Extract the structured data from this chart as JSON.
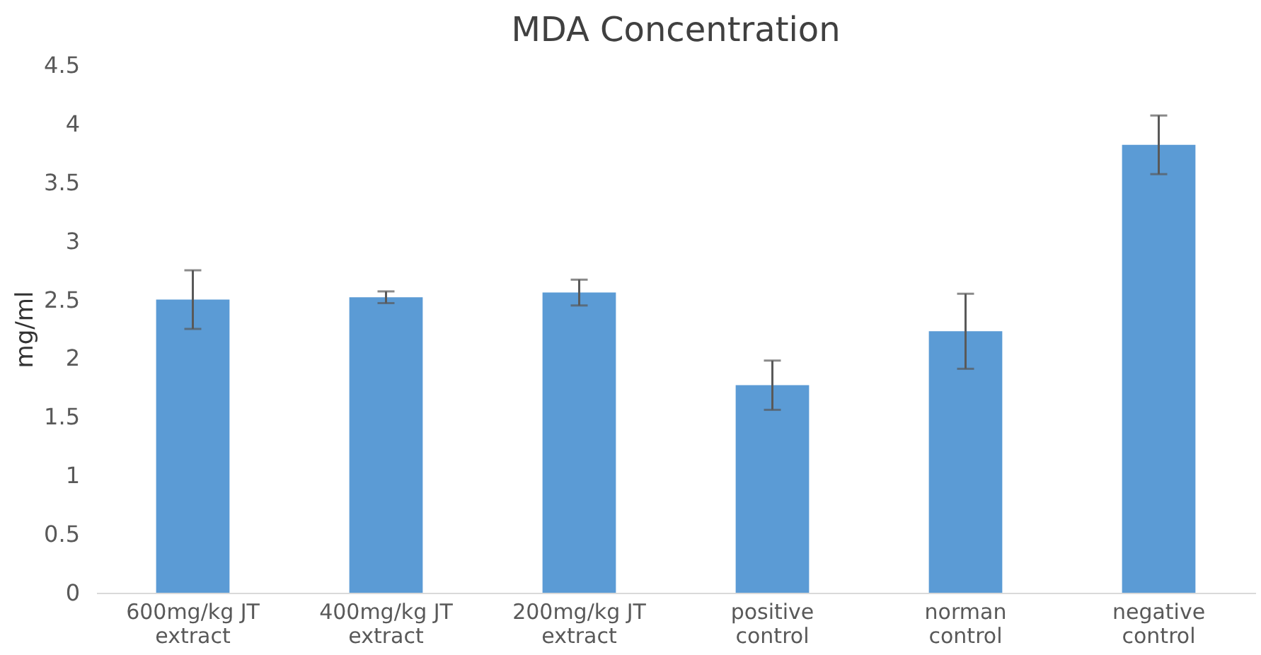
{
  "chart_data": {
    "type": "bar",
    "title": "MDA Concentration",
    "ylabel": "mg/ml",
    "categories": [
      "600mg/kg JT extract",
      "400mg/kg JT extract",
      "200mg/kg JT extract",
      "positive control",
      "norman control",
      "negative control"
    ],
    "values": [
      2.5,
      2.52,
      2.56,
      1.77,
      2.23,
      3.82
    ],
    "errors": [
      0.25,
      0.05,
      0.11,
      0.21,
      0.32,
      0.25
    ],
    "color": "#5b9bd5",
    "ylim": [
      0,
      4.5
    ],
    "yticks": [
      0,
      0.5,
      1,
      1.5,
      2,
      2.5,
      3,
      3.5,
      4,
      4.5
    ],
    "grid": false
  }
}
